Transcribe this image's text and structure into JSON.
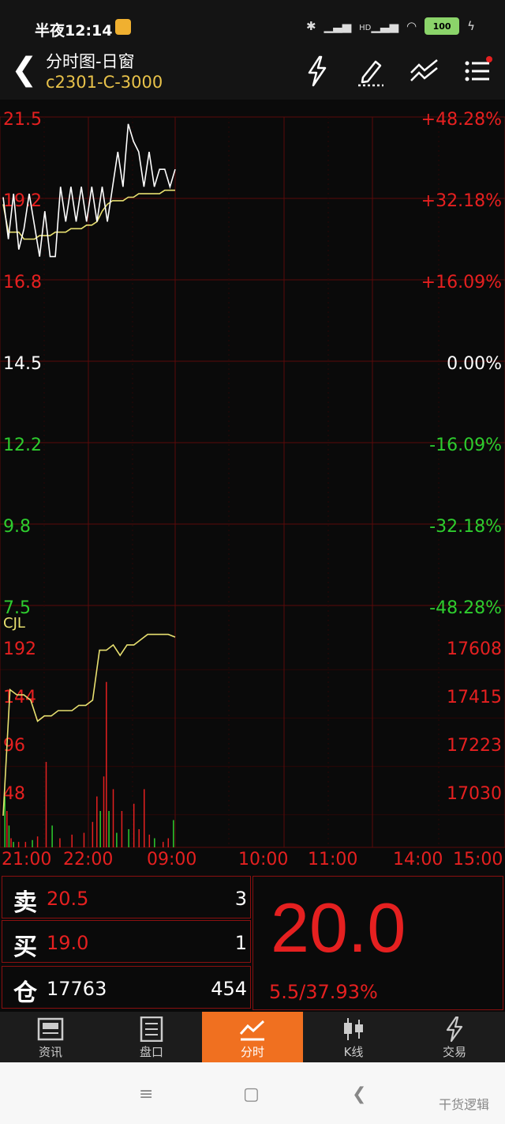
{
  "status_bar": {
    "time": "半夜12:14",
    "battery": "100",
    "network": "HD"
  },
  "header": {
    "title": "分时图-日窗",
    "symbol": "c2301-C-3000",
    "icons": [
      "lightning-icon",
      "pencil-icon",
      "indicator-icon",
      "menu-icon"
    ]
  },
  "chart_data": {
    "type": "line",
    "price_axis": {
      "left_labels": [
        "21.5",
        "19.2",
        "16.8",
        "14.5",
        "12.2",
        "9.8",
        "7.5"
      ],
      "right_labels": [
        "+48.28%",
        "+32.18%",
        "+16.09%",
        "0.00%",
        "-16.09%",
        "-32.18%",
        "-48.28%"
      ],
      "ylim": [
        7.5,
        21.5
      ],
      "base": 14.5
    },
    "volume_axis": {
      "label": "CJL",
      "left_labels": [
        "192",
        "144",
        "96",
        "48"
      ],
      "right_labels": [
        "17608",
        "17415",
        "17223",
        "17030"
      ]
    },
    "time_labels": [
      "21:00",
      "22:00",
      "09:00",
      "10:00",
      "11:00",
      "14:00",
      "15:00"
    ],
    "price_series": {
      "name": "price",
      "values": [
        19.2,
        18.0,
        19.3,
        17.7,
        18.3,
        19.3,
        18.4,
        17.5,
        18.8,
        17.5,
        17.5,
        19.5,
        18.5,
        19.5,
        18.5,
        19.5,
        18.5,
        19.5,
        18.5,
        19.5,
        18.5,
        19.5,
        20.5,
        19.5,
        21.3,
        20.8,
        20.5,
        19.5,
        20.5,
        19.5,
        20.0,
        20.0,
        19.5,
        20.0
      ]
    },
    "avg_series": {
      "name": "average",
      "values": [
        19.0,
        18.2,
        18.2,
        18.2,
        18.0,
        18.0,
        18.0,
        18.1,
        18.1,
        18.1,
        18.2,
        18.2,
        18.2,
        18.3,
        18.3,
        18.3,
        18.4,
        18.4,
        18.5,
        18.8,
        19.0,
        19.1,
        19.1,
        19.1,
        19.2,
        19.2,
        19.3,
        19.3,
        19.3,
        19.3,
        19.3,
        19.4,
        19.4,
        19.4
      ]
    },
    "oi_series": {
      "name": "open-interest",
      "values": [
        17060,
        17540,
        17520,
        17520,
        17500,
        17420,
        17440,
        17440,
        17460,
        17460,
        17460,
        17480,
        17480,
        17500,
        17690,
        17690,
        17710,
        17670,
        17710,
        17710,
        17730,
        17750,
        17750,
        17750,
        17750,
        17740
      ]
    },
    "volume_bars": [
      {
        "x": 0.01,
        "v": 56,
        "c": "#2ecc2e"
      },
      {
        "x": 0.022,
        "v": 40,
        "c": "#e52020"
      },
      {
        "x": 0.034,
        "v": 24,
        "c": "#2ecc2e"
      },
      {
        "x": 0.046,
        "v": 10,
        "c": "#e52020"
      },
      {
        "x": 0.06,
        "v": 6,
        "c": "#2ecc2e"
      },
      {
        "x": 0.09,
        "v": 6,
        "c": "#e52020"
      },
      {
        "x": 0.13,
        "v": 6,
        "c": "#e52020"
      },
      {
        "x": 0.17,
        "v": 8,
        "c": "#2ecc2e"
      },
      {
        "x": 0.2,
        "v": 12,
        "c": "#e52020"
      },
      {
        "x": 0.25,
        "v": 94,
        "c": "#e52020"
      },
      {
        "x": 0.285,
        "v": 24,
        "c": "#2ecc2e"
      },
      {
        "x": 0.33,
        "v": 10,
        "c": "#e52020"
      },
      {
        "x": 0.4,
        "v": 14,
        "c": "#e52020"
      },
      {
        "x": 0.47,
        "v": 16,
        "c": "#e52020"
      },
      {
        "x": 0.52,
        "v": 28,
        "c": "#e52020"
      },
      {
        "x": 0.545,
        "v": 56,
        "c": "#e52020"
      },
      {
        "x": 0.565,
        "v": 40,
        "c": "#2ecc2e"
      },
      {
        "x": 0.585,
        "v": 78,
        "c": "#e52020"
      },
      {
        "x": 0.6,
        "v": 182,
        "c": "#e52020"
      },
      {
        "x": 0.615,
        "v": 40,
        "c": "#2ecc2e"
      },
      {
        "x": 0.64,
        "v": 64,
        "c": "#e52020"
      },
      {
        "x": 0.66,
        "v": 16,
        "c": "#2ecc2e"
      },
      {
        "x": 0.69,
        "v": 40,
        "c": "#e52020"
      },
      {
        "x": 0.73,
        "v": 20,
        "c": "#2ecc2e"
      },
      {
        "x": 0.76,
        "v": 48,
        "c": "#e52020"
      },
      {
        "x": 0.79,
        "v": 20,
        "c": "#e52020"
      },
      {
        "x": 0.82,
        "v": 64,
        "c": "#e52020"
      },
      {
        "x": 0.85,
        "v": 14,
        "c": "#e52020"
      },
      {
        "x": 0.88,
        "v": 10,
        "c": "#2ecc2e"
      },
      {
        "x": 0.93,
        "v": 6,
        "c": "#e52020"
      },
      {
        "x": 0.96,
        "v": 10,
        "c": "#e52020"
      },
      {
        "x": 0.99,
        "v": 30,
        "c": "#2ecc2e"
      }
    ],
    "vlim": [
      0,
      240
    ]
  },
  "quote": {
    "sell_label": "卖",
    "sell_price": "20.5",
    "sell_vol": "3",
    "buy_label": "买",
    "buy_price": "19.0",
    "buy_vol": "1",
    "oi_label": "仓",
    "oi_value": "17763",
    "oi_change": "454",
    "last_price": "20.0",
    "change": "5.5/37.93%"
  },
  "tabs": [
    {
      "label": "资讯",
      "icon": "news-icon"
    },
    {
      "label": "盘口",
      "icon": "orderbook-icon"
    },
    {
      "label": "分时",
      "icon": "intraday-icon"
    },
    {
      "label": "K线",
      "icon": "kline-icon"
    },
    {
      "label": "交易",
      "icon": "trade-icon"
    }
  ],
  "watermark": "干货逻辑",
  "colors": {
    "up": "#e52020",
    "down": "#2ecc2e",
    "grid": "#5a0a0a",
    "accent": "#f07020",
    "avg": "#e8e070"
  }
}
